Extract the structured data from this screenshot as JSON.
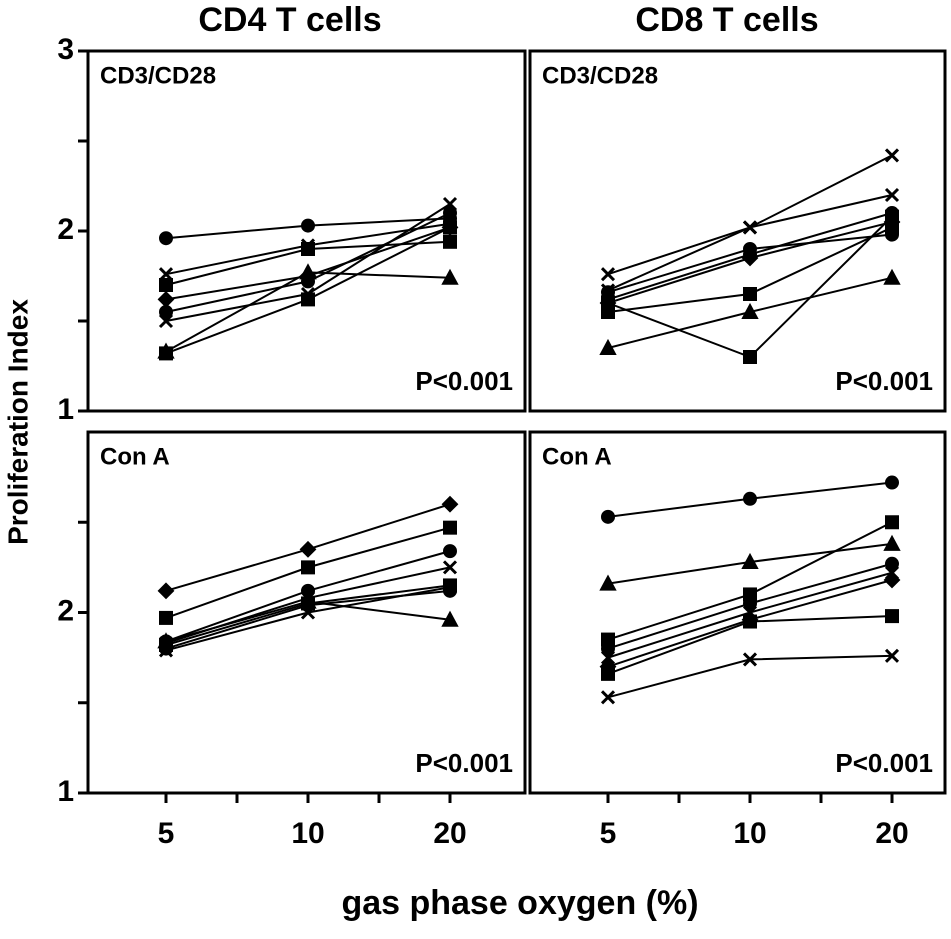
{
  "column_titles": [
    "CD4 T cells",
    "CD8 T cells"
  ],
  "ylabel": "Proliferation Index",
  "xlabel": "gas phase oxygen (%)",
  "chart_data": [
    {
      "type": "line",
      "label": "CD3/CD28",
      "annotation": "P<0.001",
      "ylim": [
        1,
        3
      ],
      "yticks": [
        1,
        2,
        3
      ],
      "yminorticks": [
        1.5,
        2.5
      ],
      "series": [
        {
          "color": "#000",
          "marker": "circle",
          "values": [
            1.96,
            2.03,
            2.07
          ]
        },
        {
          "color": "#000",
          "marker": "x",
          "values": [
            1.76,
            1.92,
            2.04
          ]
        },
        {
          "color": "#000",
          "marker": "square",
          "values": [
            1.7,
            1.9,
            1.94
          ]
        },
        {
          "color": "#000",
          "marker": "diamond",
          "values": [
            1.62,
            1.75,
            2.02
          ]
        },
        {
          "color": "#000",
          "marker": "circle",
          "values": [
            1.55,
            1.72,
            2.1
          ]
        },
        {
          "color": "#000",
          "marker": "x",
          "values": [
            1.5,
            1.65,
            2.15
          ]
        },
        {
          "color": "#000",
          "marker": "square",
          "values": [
            1.32,
            1.62,
            2.02
          ]
        },
        {
          "color": "#000",
          "marker": "triangle",
          "values": [
            1.33,
            1.77,
            1.74
          ]
        }
      ]
    },
    {
      "type": "line",
      "label": "CD3/CD28",
      "annotation": "P<0.001",
      "ylim": [
        1,
        3
      ],
      "series": [
        {
          "color": "#000",
          "marker": "x",
          "values": [
            1.76,
            2.02,
            2.42
          ]
        },
        {
          "color": "#000",
          "marker": "x",
          "values": [
            1.67,
            2.02,
            2.2
          ]
        },
        {
          "color": "#000",
          "marker": "circle",
          "values": [
            1.62,
            1.87,
            2.1
          ]
        },
        {
          "color": "#000",
          "marker": "diamond",
          "values": [
            1.6,
            1.85,
            2.05
          ]
        },
        {
          "color": "#000",
          "marker": "square",
          "values": [
            1.55,
            1.65,
            2.02
          ]
        },
        {
          "color": "#000",
          "marker": "square",
          "values": [
            1.6,
            1.3,
            2.08
          ]
        },
        {
          "color": "#000",
          "marker": "triangle",
          "values": [
            1.35,
            1.55,
            1.74
          ]
        },
        {
          "color": "#000",
          "marker": "circle",
          "values": [
            1.66,
            1.9,
            1.98
          ]
        }
      ]
    },
    {
      "type": "line",
      "label": "Con A",
      "annotation": "P<0.001",
      "categories": [
        "5",
        "10",
        "20"
      ],
      "ylim": [
        1,
        3
      ],
      "yticks": [
        1,
        2
      ],
      "yminorticks": [
        1.5,
        2.5
      ],
      "series": [
        {
          "color": "#000",
          "marker": "diamond",
          "values": [
            2.12,
            2.35,
            2.6
          ]
        },
        {
          "color": "#000",
          "marker": "square",
          "values": [
            1.97,
            2.25,
            2.47
          ]
        },
        {
          "color": "#000",
          "marker": "circle",
          "values": [
            1.84,
            2.12,
            2.34
          ]
        },
        {
          "color": "#000",
          "marker": "x",
          "values": [
            1.83,
            2.08,
            2.25
          ]
        },
        {
          "color": "#000",
          "marker": "square",
          "values": [
            1.82,
            2.05,
            2.15
          ]
        },
        {
          "color": "#000",
          "marker": "circle",
          "values": [
            1.8,
            2.04,
            2.12
          ]
        },
        {
          "color": "#000",
          "marker": "triangle",
          "values": [
            1.84,
            2.06,
            1.96
          ]
        },
        {
          "color": "#000",
          "marker": "x",
          "values": [
            1.79,
            2.0,
            2.14
          ]
        }
      ]
    },
    {
      "type": "line",
      "label": "Con A",
      "annotation": "P<0.001",
      "categories": [
        "5",
        "10",
        "20"
      ],
      "ylim": [
        1,
        3
      ],
      "series": [
        {
          "color": "#000",
          "marker": "circle",
          "values": [
            2.53,
            2.63,
            2.72
          ]
        },
        {
          "color": "#000",
          "marker": "triangle",
          "values": [
            2.16,
            2.28,
            2.38
          ]
        },
        {
          "color": "#000",
          "marker": "square",
          "values": [
            1.85,
            2.1,
            2.5
          ]
        },
        {
          "color": "#000",
          "marker": "circle",
          "values": [
            1.8,
            2.05,
            2.27
          ]
        },
        {
          "color": "#000",
          "marker": "x",
          "values": [
            1.75,
            2.0,
            2.22
          ]
        },
        {
          "color": "#000",
          "marker": "diamond",
          "values": [
            1.7,
            1.96,
            2.18
          ]
        },
        {
          "color": "#000",
          "marker": "square",
          "values": [
            1.66,
            1.95,
            1.98
          ]
        },
        {
          "color": "#000",
          "marker": "x",
          "values": [
            1.53,
            1.74,
            1.76
          ]
        }
      ]
    }
  ]
}
